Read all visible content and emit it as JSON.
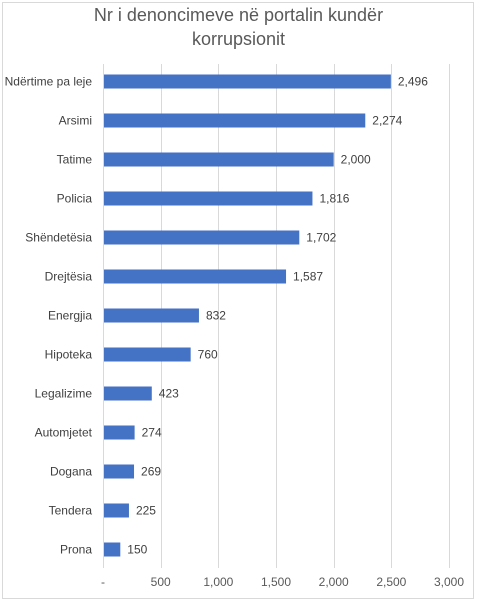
{
  "chart_data": {
    "type": "bar",
    "orientation": "horizontal",
    "title_lines": [
      "Nr i denoncimeve në portalin kundër",
      "korrupsionit"
    ],
    "categories": [
      "Ndërtime pa leje",
      "Arsimi",
      "Tatime",
      "Policia",
      "Shëndetësia",
      "Drejtësia",
      "Energjia",
      "Hipoteka",
      "Legalizime",
      "Automjetet",
      "Dogana",
      "Tendera",
      "Prona"
    ],
    "values": [
      2496,
      2274,
      2000,
      1816,
      1702,
      1587,
      832,
      760,
      423,
      274,
      269,
      225,
      150
    ],
    "value_labels": [
      "2,496",
      "2,274",
      "2,000",
      "1,816",
      "1,702",
      "1,587",
      "832",
      "760",
      "423",
      "274",
      "269",
      "225",
      "150"
    ],
    "xlim": [
      0,
      3000
    ],
    "xticks": [
      0,
      500,
      1000,
      1500,
      2000,
      2500,
      3000
    ],
    "xtick_labels": [
      "-",
      "500",
      "1,000",
      "1,500",
      "2,000",
      "2,500",
      "3,000"
    ],
    "xlabel": "",
    "ylabel": "",
    "grid": true,
    "legend": false,
    "bar_color": "#4472c4",
    "grid_color": "#d9d9d9"
  }
}
